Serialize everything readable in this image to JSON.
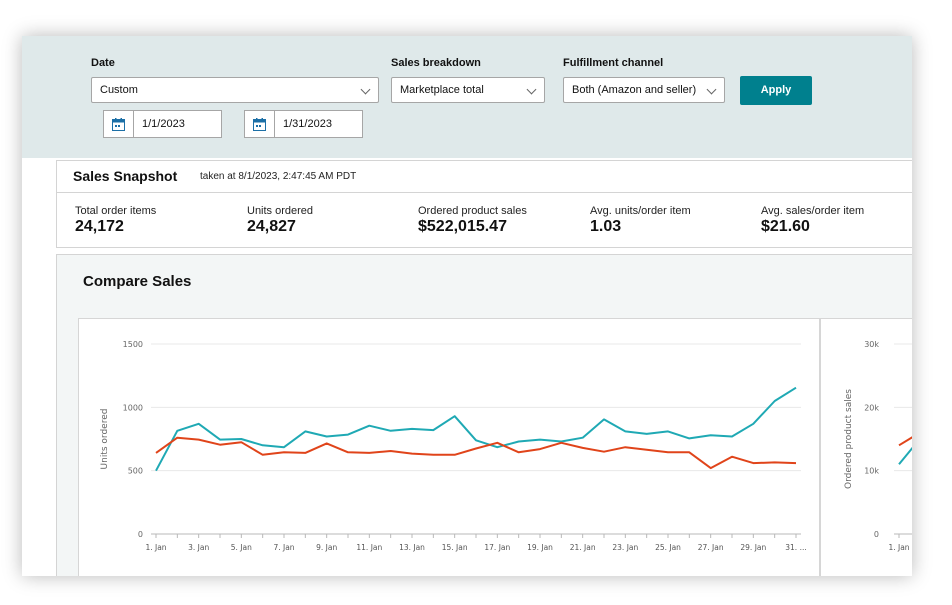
{
  "filters": {
    "date_label": "Date",
    "date_value": "Custom",
    "start_date": "1/1/2023",
    "end_date": "1/31/2023",
    "breakdown_label": "Sales breakdown",
    "breakdown_value": "Marketplace total",
    "channel_label": "Fulfillment channel",
    "channel_value": "Both (Amazon and seller)",
    "apply_label": "Apply"
  },
  "snapshot": {
    "title": "Sales Snapshot",
    "taken": "taken at 8/1/2023, 2:47:45 AM PDT",
    "metrics": [
      {
        "label": "Total order items",
        "value": "24,172"
      },
      {
        "label": "Units ordered",
        "value": "24,827"
      },
      {
        "label": "Ordered product sales",
        "value": "$522,015.47"
      },
      {
        "label": "Avg. units/order item",
        "value": "1.03"
      },
      {
        "label": "Avg. sales/order item",
        "value": "$21.60"
      }
    ]
  },
  "compare": {
    "title": "Compare Sales"
  },
  "colors": {
    "teal": "#1fa9b4",
    "orange": "#e0441a",
    "apply": "#00808e"
  },
  "chart_data": [
    {
      "type": "line",
      "ylabel": "Units ordered",
      "ylim": [
        0,
        1500
      ],
      "yticks": [
        0,
        500,
        1000,
        1500
      ],
      "x_ticks": [
        "1. Jan",
        "3. Jan",
        "5. Jan",
        "7. Jan",
        "9. Jan",
        "11. Jan",
        "13. Jan",
        "15. Jan",
        "17. Jan",
        "19. Jan",
        "21. Jan",
        "23. Jan",
        "25. Jan",
        "27. Jan",
        "29. Jan",
        "31. ..."
      ],
      "x": [
        1,
        2,
        3,
        4,
        5,
        6,
        7,
        8,
        9,
        10,
        11,
        12,
        13,
        14,
        15,
        16,
        17,
        18,
        19,
        20,
        21,
        22,
        23,
        24,
        25,
        26,
        27,
        28,
        29,
        30,
        31
      ],
      "series": [
        {
          "color": "#1fa9b4",
          "values": [
            500,
            815,
            870,
            745,
            750,
            700,
            685,
            810,
            770,
            785,
            855,
            815,
            830,
            820,
            930,
            740,
            685,
            730,
            745,
            730,
            760,
            905,
            810,
            790,
            810,
            755,
            780,
            770,
            870,
            1050,
            1155
          ]
        },
        {
          "color": "#e0441a",
          "values": [
            640,
            760,
            745,
            705,
            725,
            625,
            645,
            640,
            715,
            645,
            640,
            655,
            635,
            625,
            625,
            675,
            720,
            645,
            670,
            720,
            680,
            650,
            685,
            665,
            645,
            645,
            520,
            610,
            560,
            565,
            560
          ]
        }
      ]
    },
    {
      "type": "line",
      "ylabel": "Ordered product sales",
      "ylim": [
        0,
        30000
      ],
      "yticks": [
        "0",
        "10k",
        "20k",
        "30k"
      ],
      "x_ticks": [
        "1. Jan"
      ],
      "x": [
        1,
        2
      ],
      "series": [
        {
          "color": "#1fa9b4",
          "values": [
            11000,
            15000
          ]
        },
        {
          "color": "#e0441a",
          "values": [
            14000,
            16000
          ]
        }
      ]
    }
  ]
}
